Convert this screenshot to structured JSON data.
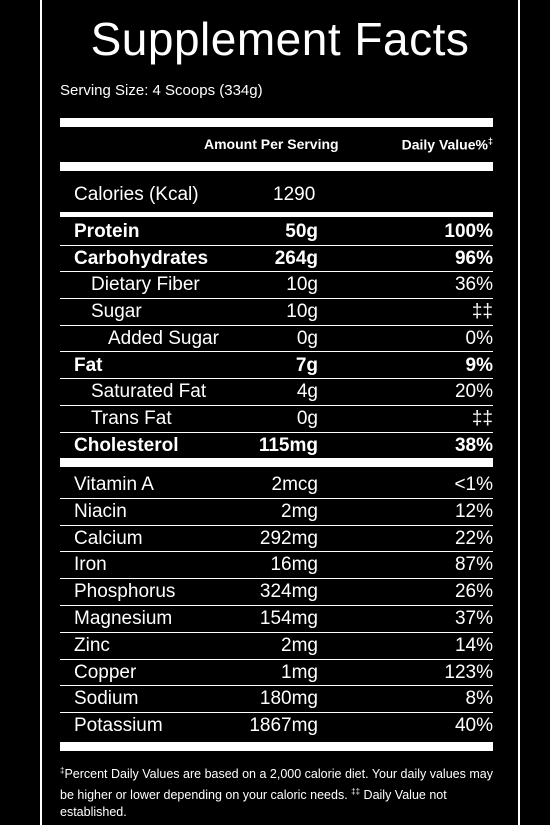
{
  "title": "Supplement Facts",
  "serving_size": "Serving Size: 4 Scoops (334g)",
  "header": {
    "amount": "Amount Per Serving",
    "daily_value": "Daily Value%",
    "dv_mark": "‡"
  },
  "calories": {
    "name": "Calories (Kcal)",
    "amount": "1290"
  },
  "macros": [
    {
      "name": "Protein",
      "amount": "50g",
      "dv": "100%",
      "bold": true,
      "indent": 0
    },
    {
      "name": "Carbohydrates",
      "amount": "264g",
      "dv": "96%",
      "bold": true,
      "indent": 0
    },
    {
      "name": "Dietary Fiber",
      "amount": "10g",
      "dv": "36%",
      "bold": false,
      "indent": 1
    },
    {
      "name": "Sugar",
      "amount": "10g",
      "dv": "‡‡",
      "bold": false,
      "indent": 1
    },
    {
      "name": "Added Sugar",
      "amount": "0g",
      "dv": "0%",
      "bold": false,
      "indent": 2
    },
    {
      "name": "Fat",
      "amount": "7g",
      "dv": "9%",
      "bold": true,
      "indent": 0
    },
    {
      "name": "Saturated Fat",
      "amount": "4g",
      "dv": "20%",
      "bold": false,
      "indent": 1
    },
    {
      "name": "Trans Fat",
      "amount": "0g",
      "dv": "‡‡",
      "bold": false,
      "indent": 1
    },
    {
      "name": "Cholesterol",
      "amount": "115mg",
      "dv": "38%",
      "bold": true,
      "indent": 0
    }
  ],
  "micros": [
    {
      "name": "Vitamin A",
      "amount": "2mcg",
      "dv": "<1%"
    },
    {
      "name": "Niacin",
      "amount": "2mg",
      "dv": "12%"
    },
    {
      "name": "Calcium",
      "amount": "292mg",
      "dv": "22%"
    },
    {
      "name": "Iron",
      "amount": "16mg",
      "dv": "87%"
    },
    {
      "name": "Phosphorus",
      "amount": "324mg",
      "dv": "26%"
    },
    {
      "name": "Magnesium",
      "amount": "154mg",
      "dv": "37%"
    },
    {
      "name": "Zinc",
      "amount": "2mg",
      "dv": "14%"
    },
    {
      "name": "Copper",
      "amount": "1mg",
      "dv": "123%"
    },
    {
      "name": "Sodium",
      "amount": "180mg",
      "dv": "8%"
    },
    {
      "name": "Potassium",
      "amount": "1867mg",
      "dv": "40%"
    }
  ],
  "footnote": {
    "mark1": "‡",
    "text1": "Percent Daily Values are based on a 2,000 calorie diet. Your daily values may be higher or lower depending on your caloric needs.",
    "mark2": "‡‡",
    "text2": " Daily Value not established."
  }
}
